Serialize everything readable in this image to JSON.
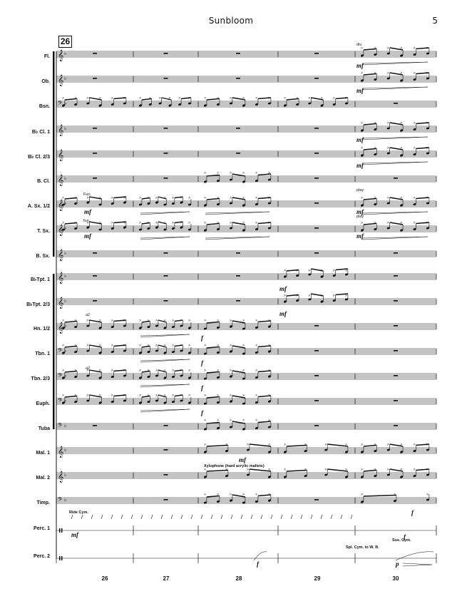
{
  "header": {
    "title": "Sunbloom",
    "page_number": "5"
  },
  "rehearsal_mark": "26",
  "instruments": [
    "Fl.",
    "Ob.",
    "Bsn.",
    "B♭ Cl. 1",
    "B♭ Cl. 2/3",
    "B. Cl.",
    "A. Sx. 1/2",
    "T. Sx.",
    "B. Sx.",
    "B♭Tpt. 1",
    "B♭Tpt. 2/3",
    "Hn. 1/2",
    "Tbn. 1",
    "Tbn. 2/3",
    "Euph.",
    "Tuba",
    "Mal. 1",
    "Mal. 2",
    "Timp.",
    "Perc. 1",
    "Perc. 2"
  ],
  "measure_numbers": [
    "26",
    "27",
    "28",
    "29",
    "30"
  ],
  "annotations": {
    "div": "div.",
    "play1": "play",
    "play2": "play",
    "fun": "Fun.",
    "fun2": "fun.",
    "a2_1": "a2",
    "a2_2": "a2",
    "xylophone": "Xylophone (hard acrylic mallets)",
    "ride": "Ride Cym.",
    "sus": "Sus. Cym.",
    "spl": "Spl. Cym. to W. B."
  },
  "dynamics": {
    "fl": "mf",
    "ob": "mf",
    "cl1": "mf",
    "cl23": "mf",
    "asx": "mf",
    "asx30": "mf",
    "tsx": "mf",
    "tsx30": "mf",
    "tpt1": "mf",
    "tpt23": "mf",
    "hn": "f",
    "tbn1": "f",
    "tbn23": "f",
    "euph": "f",
    "mal1": "mf",
    "perc1": "mf",
    "perc1_30": "f",
    "perc2_28": "f",
    "perc2_30": "p",
    "timp30": "f"
  }
}
